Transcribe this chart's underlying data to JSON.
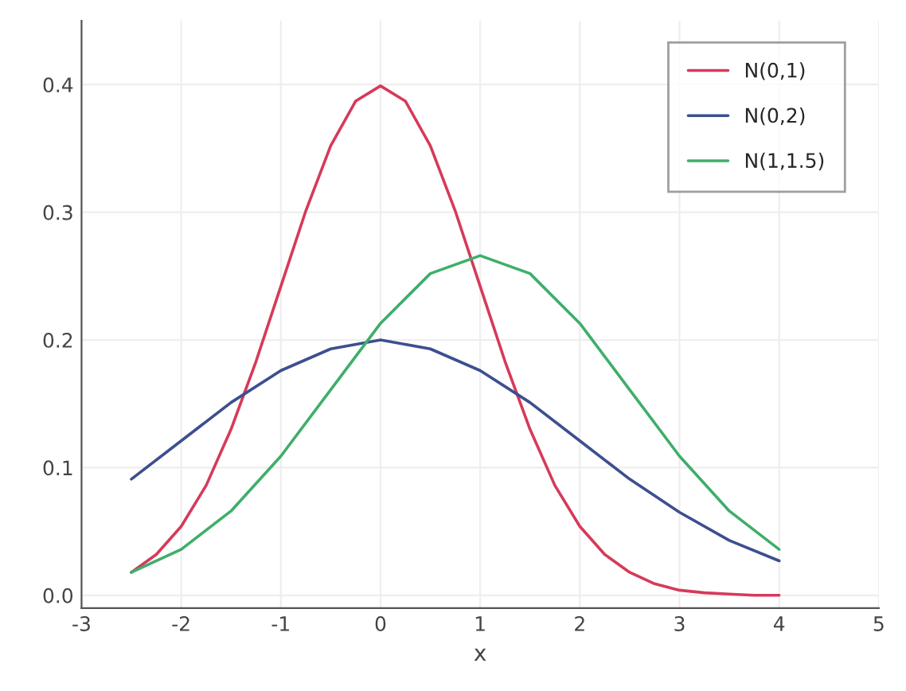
{
  "chart_data": {
    "type": "line",
    "xlabel": "x",
    "xlim": [
      -3,
      5
    ],
    "ylim": [
      -0.01,
      0.45
    ],
    "xticks": [
      -3,
      -2,
      -1,
      0,
      1,
      2,
      3,
      4,
      5
    ],
    "yticks": [
      {
        "value": 0,
        "label": "0.0"
      },
      {
        "value": 0.1,
        "label": "0.1"
      },
      {
        "value": 0.2,
        "label": "0.2"
      },
      {
        "value": 0.3,
        "label": "0.3"
      },
      {
        "value": 0.4,
        "label": "0.4"
      }
    ],
    "grid": true,
    "legend": "top right",
    "marker": "none",
    "line_style": "solid",
    "series": [
      {
        "name": "N(0,1)",
        "color": "#d63a5a",
        "x": [
          -2.5,
          -2.25,
          -2,
          -1.75,
          -1.5,
          -1.25,
          -1,
          -0.75,
          -0.5,
          -0.25,
          0,
          0.25,
          0.5,
          0.75,
          1,
          1.25,
          1.5,
          1.75,
          2,
          2.25,
          2.5,
          2.75,
          3,
          3.25,
          3.5,
          3.75,
          4
        ],
        "values": [
          0.018,
          0.032,
          0.054,
          0.086,
          0.13,
          0.183,
          0.242,
          0.301,
          0.352,
          0.387,
          0.399,
          0.387,
          0.352,
          0.301,
          0.242,
          0.183,
          0.13,
          0.086,
          0.054,
          0.032,
          0.018,
          0.009,
          0.004,
          0.002,
          0.001,
          0.0,
          0.0
        ]
      },
      {
        "name": "N(0,2)",
        "color": "#3d4f8f",
        "x": [
          -2.5,
          -2,
          -1.5,
          -1,
          -0.5,
          0,
          0.5,
          1,
          1.5,
          2,
          2.5,
          3,
          3.5,
          4
        ],
        "values": [
          0.091,
          0.121,
          0.151,
          0.176,
          0.193,
          0.2,
          0.193,
          0.176,
          0.151,
          0.121,
          0.091,
          0.065,
          0.043,
          0.027
        ]
      },
      {
        "name": "N(1,1.5)",
        "color": "#3fae6a",
        "x": [
          -2.5,
          -2,
          -1.5,
          -1,
          -0.5,
          0,
          0.5,
          1,
          1.5,
          2,
          2.5,
          3,
          3.5,
          4
        ],
        "values": [
          0.018,
          0.036,
          0.066,
          0.109,
          0.161,
          0.213,
          0.252,
          0.266,
          0.252,
          0.213,
          0.161,
          0.109,
          0.066,
          0.036
        ]
      }
    ]
  }
}
